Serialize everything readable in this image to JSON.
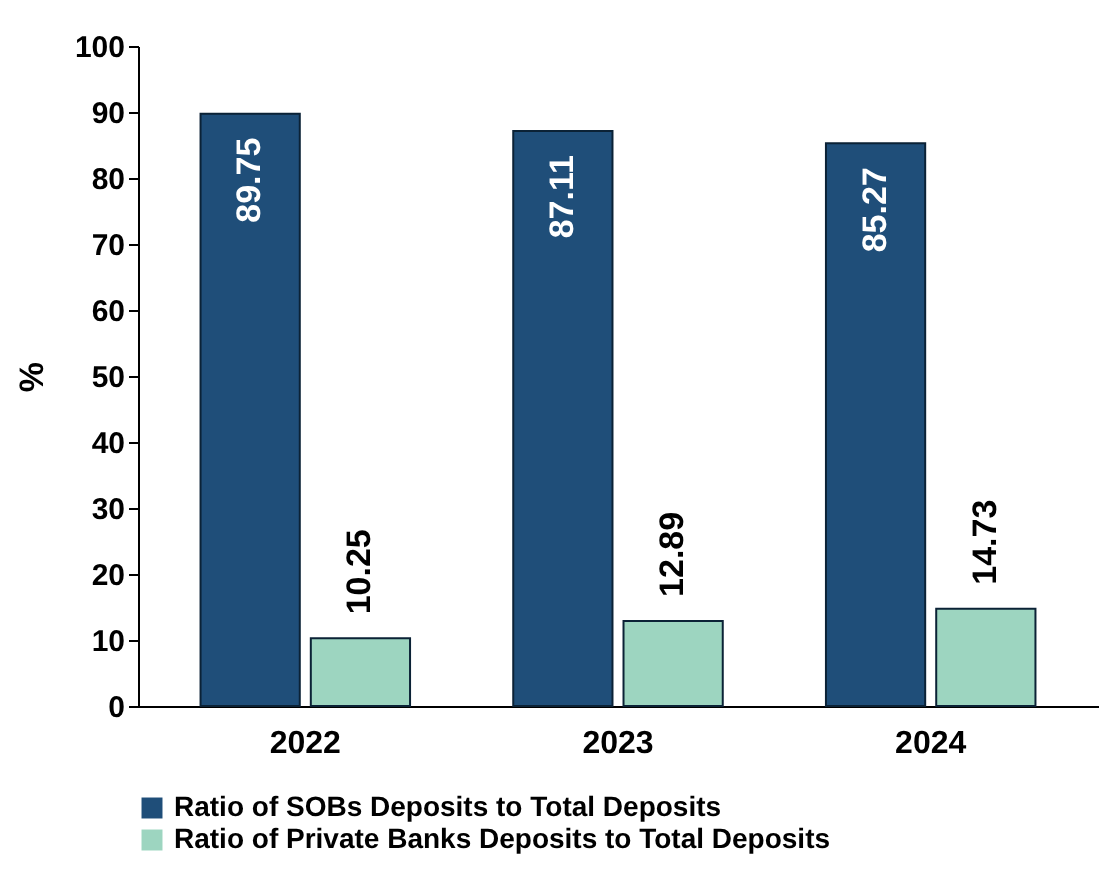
{
  "chart_data": {
    "type": "bar",
    "ylabel": "%",
    "categories": [
      "2022",
      "2023",
      "2024"
    ],
    "series": [
      {
        "name": "Ratio of SOBs Deposits to Total Deposits",
        "color": "#1f4e79",
        "values": [
          89.75,
          87.11,
          85.27
        ]
      },
      {
        "name": "Ratio of Private Banks Deposits to Total Deposits",
        "color": "#9dd5c0",
        "values": [
          10.25,
          12.89,
          14.73
        ]
      }
    ],
    "ylim": [
      0,
      100
    ],
    "yticks": [
      0,
      10,
      20,
      30,
      40,
      50,
      60,
      70,
      80,
      90,
      100
    ],
    "data_labels": true,
    "legend": "bottom",
    "grid": false
  }
}
